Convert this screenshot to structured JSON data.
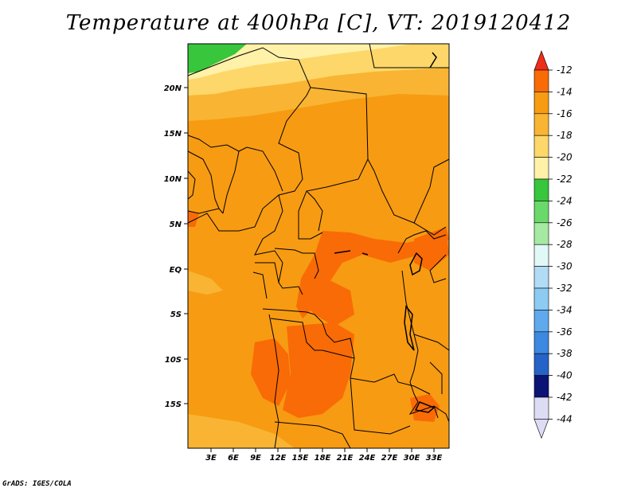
{
  "title": "Temperature at 400hPa [C], VT: 2019120412",
  "credit": "GrADS: IGES/COLA",
  "lat_labels": [
    "20N",
    "15N",
    "10N",
    "5N",
    "EQ",
    "5S",
    "10S",
    "15S"
  ],
  "lon_labels": [
    "3E",
    "6E",
    "9E",
    "12E",
    "15E",
    "18E",
    "21E",
    "24E",
    "27E",
    "30E",
    "33E"
  ],
  "colorbar": {
    "labels": [
      "-12",
      "-14",
      "-16",
      "-18",
      "-20",
      "-22",
      "-24",
      "-26",
      "-28",
      "-30",
      "-32",
      "-34",
      "-36",
      "-38",
      "-40",
      "-42",
      "-44"
    ],
    "colors": [
      "#ee2d1a",
      "#f96b06",
      "#f79b12",
      "#f9b433",
      "#fdd769",
      "#fff1a8",
      "#37c63c",
      "#6ad96a",
      "#a6e9a2",
      "#e0f8f6",
      "#b2dcf6",
      "#8ccbf2",
      "#5fa9ec",
      "#3d88e0",
      "#2663c8",
      "#0b1475",
      "#dcdcf5"
    ]
  },
  "field_colors": {
    "orange_main": "#f79b12",
    "orange_dark": "#f96b06",
    "orange_light": "#f9b433",
    "yellow": "#fdd769",
    "cream": "#fff1a8",
    "green": "#37c63c"
  }
}
